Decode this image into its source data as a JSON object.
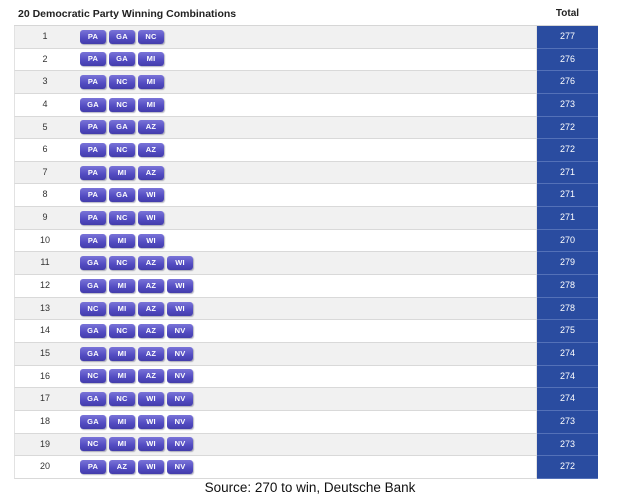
{
  "table": {
    "title": "20 Democratic Party Winning Combinations",
    "total_header": "Total",
    "rows": [
      {
        "num": "1",
        "states": [
          "PA",
          "GA",
          "NC"
        ],
        "total": "277"
      },
      {
        "num": "2",
        "states": [
          "PA",
          "GA",
          "MI"
        ],
        "total": "276"
      },
      {
        "num": "3",
        "states": [
          "PA",
          "NC",
          "MI"
        ],
        "total": "276"
      },
      {
        "num": "4",
        "states": [
          "GA",
          "NC",
          "MI"
        ],
        "total": "273"
      },
      {
        "num": "5",
        "states": [
          "PA",
          "GA",
          "AZ"
        ],
        "total": "272"
      },
      {
        "num": "6",
        "states": [
          "PA",
          "NC",
          "AZ"
        ],
        "total": "272"
      },
      {
        "num": "7",
        "states": [
          "PA",
          "MI",
          "AZ"
        ],
        "total": "271"
      },
      {
        "num": "8",
        "states": [
          "PA",
          "GA",
          "WI"
        ],
        "total": "271"
      },
      {
        "num": "9",
        "states": [
          "PA",
          "NC",
          "WI"
        ],
        "total": "271"
      },
      {
        "num": "10",
        "states": [
          "PA",
          "MI",
          "WI"
        ],
        "total": "270"
      },
      {
        "num": "11",
        "states": [
          "GA",
          "NC",
          "AZ",
          "WI"
        ],
        "total": "279"
      },
      {
        "num": "12",
        "states": [
          "GA",
          "MI",
          "AZ",
          "WI"
        ],
        "total": "278"
      },
      {
        "num": "13",
        "states": [
          "NC",
          "MI",
          "AZ",
          "WI"
        ],
        "total": "278"
      },
      {
        "num": "14",
        "states": [
          "GA",
          "NC",
          "AZ",
          "NV"
        ],
        "total": "275"
      },
      {
        "num": "15",
        "states": [
          "GA",
          "MI",
          "AZ",
          "NV"
        ],
        "total": "274"
      },
      {
        "num": "16",
        "states": [
          "NC",
          "MI",
          "AZ",
          "NV"
        ],
        "total": "274"
      },
      {
        "num": "17",
        "states": [
          "GA",
          "NC",
          "WI",
          "NV"
        ],
        "total": "274"
      },
      {
        "num": "18",
        "states": [
          "GA",
          "MI",
          "WI",
          "NV"
        ],
        "total": "273"
      },
      {
        "num": "19",
        "states": [
          "NC",
          "MI",
          "WI",
          "NV"
        ],
        "total": "273"
      },
      {
        "num": "20",
        "states": [
          "PA",
          "AZ",
          "WI",
          "NV"
        ],
        "total": "272"
      }
    ]
  },
  "source": "Source: 270 to win, Deutsche Bank",
  "colors": {
    "pill": "#5a53c8",
    "total_column": "#2a4ca0",
    "row_stripe": "#f1f1f1"
  }
}
